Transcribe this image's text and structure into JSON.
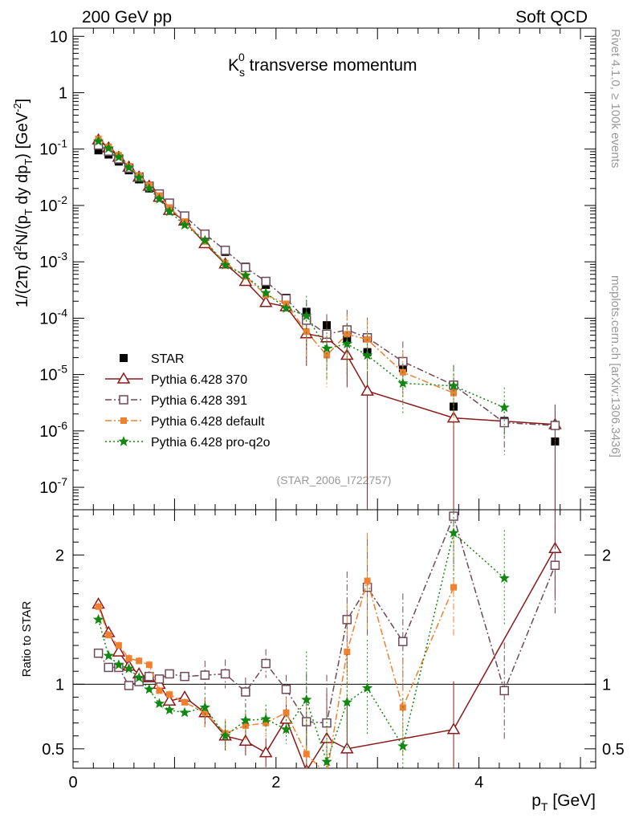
{
  "header": {
    "left": "200 GeV pp",
    "right": "Soft QCD"
  },
  "side": {
    "version": "Rivet 4.1.0, ≥ 100k events",
    "source": "mcplots.cern.ch [arXiv:1306.3436]"
  },
  "colors": {
    "STAR": "#000000",
    "p370": "#8b1a1a",
    "p391": "#6e4a5a",
    "pdef": "#f08030",
    "pq2o": "#118811"
  },
  "chart_data": {
    "type": "scatter",
    "title_main": "K",
    "title_sup": "0",
    "title_sub": "s",
    "title_rest": " transverse momentum",
    "analysis_id": "(STAR_2006_I722757)",
    "ylabel_parts": {
      "a": "1/(2",
      "pi": "π",
      "b": ")   d",
      "sup2": "2",
      "c": "N/(p",
      "subT": "T",
      "d": " dy dp",
      "subT2": "T",
      "e": ") [GeV",
      "supm2": "-2",
      "f": "]"
    },
    "ylabel_ratio": "Ratio to STAR",
    "xlabel": "p",
    "xlabel_sub": "T",
    "xlabel_unit": " [GeV]",
    "xlim": [
      0,
      5.15
    ],
    "ylim_main": [
      4e-08,
      14
    ],
    "ylim_ratio": [
      0.35,
      2.35
    ],
    "x_ticks": [
      0,
      2,
      4
    ],
    "main_y_ticks": [
      {
        "value": 10,
        "base": "10",
        "exp": ""
      },
      {
        "value": 1,
        "base": "1",
        "exp": ""
      },
      {
        "value": 0.1,
        "base": "10",
        "exp": "-1"
      },
      {
        "value": 0.01,
        "base": "10",
        "exp": "-2"
      },
      {
        "value": 0.001,
        "base": "10",
        "exp": "-3"
      },
      {
        "value": 0.0001,
        "base": "10",
        "exp": "-4"
      },
      {
        "value": 1e-05,
        "base": "10",
        "exp": "-5"
      },
      {
        "value": 1e-06,
        "base": "10",
        "exp": "-6"
      },
      {
        "value": 1e-07,
        "base": "10",
        "exp": "-7"
      }
    ],
    "ratio_y_ticks": [
      0.5,
      1,
      2
    ],
    "series": [
      {
        "key": "STAR",
        "name": "STAR",
        "marker": "square-filled",
        "line": "none",
        "x": [
          0.25,
          0.35,
          0.45,
          0.55,
          0.65,
          0.75,
          0.85,
          0.95,
          1.1,
          1.3,
          1.5,
          1.7,
          1.9,
          2.1,
          2.3,
          2.5,
          2.7,
          2.9,
          3.25,
          3.75,
          4.25,
          4.75
        ],
        "y": [
          0.095,
          0.08,
          0.06,
          0.042,
          0.029,
          0.02,
          0.014,
          0.0095,
          0.006,
          0.0028,
          0.0015,
          0.00082,
          0.00039,
          0.00023,
          0.00013,
          7.5e-05,
          4.2e-05,
          2.5e-05,
          1.3e-05,
          2.7e-06,
          1.5e-06,
          6.5e-07
        ]
      },
      {
        "key": "p370",
        "name": "Pythia 6.428 370",
        "marker": "triangle-open",
        "line": "solid",
        "x": [
          0.25,
          0.35,
          0.45,
          0.55,
          0.65,
          0.75,
          0.85,
          0.95,
          1.1,
          1.3,
          1.5,
          1.7,
          1.9,
          2.1,
          2.3,
          2.5,
          2.7,
          2.9,
          3.75,
          4.75
        ],
        "y": [
          0.145,
          0.105,
          0.072,
          0.048,
          0.032,
          0.022,
          0.014,
          0.0082,
          0.0053,
          0.0021,
          0.00092,
          0.00045,
          0.00019,
          0.00016,
          5.3e-05,
          4.5e-05,
          2.2e-05,
          5.1e-06,
          1.7e-06,
          1.3e-06
        ],
        "ratio_x": [
          0.25,
          0.35,
          0.45,
          0.55,
          0.65,
          0.75,
          0.85,
          0.95,
          1.1,
          1.3,
          1.5,
          1.7,
          1.9,
          2.1,
          2.3,
          2.5,
          2.7,
          3.75,
          4.75
        ],
        "ratio": [
          1.62,
          1.4,
          1.25,
          1.14,
          1.08,
          1.05,
          1.0,
          0.87,
          0.9,
          0.78,
          0.6,
          0.56,
          0.47,
          0.73,
          0.33,
          0.58,
          0.5,
          0.65,
          2.05
        ]
      },
      {
        "key": "p391",
        "name": "Pythia 6.428 391",
        "marker": "square-open",
        "line": "dashdot",
        "x": [
          0.25,
          0.35,
          0.45,
          0.55,
          0.65,
          0.75,
          0.85,
          0.95,
          1.1,
          1.3,
          1.5,
          1.7,
          1.9,
          2.1,
          2.3,
          2.5,
          2.7,
          2.9,
          3.25,
          3.75,
          4.25,
          4.75
        ],
        "y": [
          0.118,
          0.092,
          0.067,
          0.046,
          0.032,
          0.022,
          0.016,
          0.011,
          0.0065,
          0.0031,
          0.0016,
          0.00079,
          0.00045,
          0.00022,
          9.2e-05,
          5.2e-05,
          6.2e-05,
          4.5e-05,
          1.7e-05,
          6.5e-06,
          1.4e-06,
          1.25e-06
        ],
        "ratio": [
          1.24,
          1.13,
          1.13,
          0.99,
          1.02,
          1.06,
          1.04,
          1.08,
          1.06,
          1.07,
          1.08,
          0.94,
          1.16,
          0.96,
          0.71,
          0.7,
          1.5,
          1.75,
          1.33,
          2.3,
          0.95,
          1.92
        ]
      },
      {
        "key": "pdef",
        "name": "Pythia 6.428 default",
        "marker": "square-filled",
        "line": "dashdot",
        "x": [
          0.25,
          0.35,
          0.45,
          0.55,
          0.65,
          0.75,
          0.85,
          0.95,
          1.1,
          1.3,
          1.5,
          1.7,
          1.9,
          2.1,
          2.3,
          2.5,
          2.7,
          2.9,
          3.25,
          3.75
        ],
        "y": [
          0.152,
          0.11,
          0.078,
          0.05,
          0.034,
          0.023,
          0.015,
          0.0092,
          0.0052,
          0.0023,
          0.00095,
          0.00055,
          0.00026,
          0.00018,
          5.8e-05,
          2.2e-05,
          5.2e-05,
          4.2e-05,
          1.1e-05,
          4.7e-06
        ],
        "ratio": [
          1.6,
          1.38,
          1.3,
          1.2,
          1.18,
          1.15,
          0.95,
          0.92,
          0.86,
          0.78,
          0.62,
          0.68,
          0.7,
          0.78,
          0.46,
          0.3,
          1.25,
          1.8,
          0.82,
          1.75
        ]
      },
      {
        "key": "pq2o",
        "name": "Pythia 6.428 pro-q2o",
        "marker": "star",
        "line": "dotted",
        "x": [
          0.25,
          0.35,
          0.45,
          0.55,
          0.65,
          0.75,
          0.85,
          0.95,
          1.1,
          1.3,
          1.5,
          1.7,
          1.9,
          2.1,
          2.3,
          2.5,
          2.7,
          2.9,
          3.25,
          3.75,
          4.25
        ],
        "y": [
          0.138,
          0.103,
          0.072,
          0.047,
          0.031,
          0.02,
          0.013,
          0.0078,
          0.0045,
          0.0024,
          0.00088,
          0.00057,
          0.00028,
          0.00015,
          0.00011,
          2.9e-05,
          3.5e-05,
          2.2e-05,
          7e-06,
          6.3e-06,
          2.6e-06
        ],
        "ratio": [
          1.5,
          1.22,
          1.15,
          1.12,
          1.05,
          0.96,
          0.85,
          0.8,
          0.78,
          0.82,
          0.6,
          0.72,
          0.73,
          0.65,
          0.88,
          0.4,
          0.86,
          0.97,
          0.52,
          2.17,
          1.82
        ]
      }
    ]
  }
}
